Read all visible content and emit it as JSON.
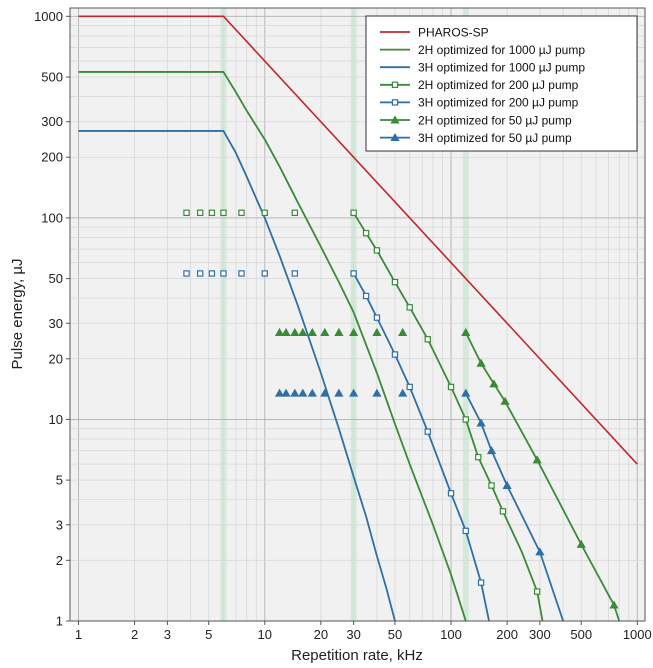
{
  "chart_data": {
    "type": "line",
    "title": "",
    "xlabel": "Repetition rate, kHz",
    "ylabel": "Pulse energy, µJ",
    "x_scale": "log",
    "y_scale": "log",
    "xlim": [
      0.9,
      1100
    ],
    "ylim": [
      1,
      1100
    ],
    "grid": true,
    "legend_position": "top-right",
    "x_ticks": [
      1,
      2,
      3,
      5,
      10,
      20,
      30,
      50,
      100,
      200,
      300,
      500,
      1000
    ],
    "x_tick_labels": [
      "1",
      "2",
      "3",
      "5",
      "10",
      "20",
      "30",
      "50",
      "100",
      "200",
      "300",
      "500",
      "1000"
    ],
    "y_ticks": [
      1,
      2,
      3,
      5,
      10,
      20,
      30,
      50,
      100,
      200,
      300,
      500,
      1000
    ],
    "y_tick_labels": [
      "1",
      "2",
      "3",
      "5",
      "10",
      "20",
      "30",
      "50",
      "100",
      "200",
      "300",
      "500",
      "1000"
    ],
    "highlight_x": [
      6,
      30,
      120
    ],
    "series": [
      {
        "name": "PHAROS-SP",
        "color": "#c0272d",
        "marker": "none",
        "x": [
          1,
          6,
          1000
        ],
        "y": [
          1000,
          1000,
          6
        ]
      },
      {
        "name": "2H optimized for 1000 µJ pump",
        "color": "#3a8a3a",
        "marker": "none",
        "x": [
          1,
          6,
          7,
          8,
          10,
          12,
          15,
          20,
          25,
          30,
          40,
          50,
          60,
          80,
          100,
          120
        ],
        "y": [
          530,
          530,
          420,
          340,
          245,
          180,
          120,
          72,
          48,
          34,
          17,
          9.5,
          6,
          3,
          1.7,
          1
        ]
      },
      {
        "name": "3H optimized for 1000 µJ pump",
        "color": "#2e6fa6",
        "marker": "none",
        "x": [
          1,
          6,
          7,
          8,
          10,
          12,
          15,
          20,
          25,
          30,
          35,
          40,
          45,
          50
        ],
        "y": [
          270,
          270,
          210,
          160,
          100,
          65,
          37,
          17,
          9,
          5.2,
          3.3,
          2.1,
          1.45,
          1
        ]
      },
      {
        "name": "2H optimized for 200 µJ pump",
        "color": "#3a8a3a",
        "marker": "open-square",
        "points_x": [
          3.8,
          4.5,
          5.2,
          6,
          7.5,
          10,
          14.5,
          30,
          35,
          40,
          50,
          60,
          75,
          100,
          120,
          140,
          165,
          190,
          290
        ],
        "points_y": [
          106,
          106,
          106,
          106,
          106,
          106,
          106,
          106,
          84,
          69,
          48,
          36,
          25,
          14.5,
          10,
          6.5,
          4.7,
          3.5,
          1.4
        ],
        "x": [
          30,
          35,
          40,
          50,
          60,
          75,
          100,
          120,
          140,
          165,
          190,
          240,
          290,
          310
        ],
        "y": [
          106,
          84,
          69,
          48,
          36,
          25,
          14.5,
          10,
          6.5,
          4.7,
          3.5,
          2.2,
          1.4,
          1
        ]
      },
      {
        "name": "3H optimized for 200 µJ pump",
        "color": "#2e6fa6",
        "marker": "open-square",
        "points_x": [
          3.8,
          4.5,
          5.2,
          6,
          7.5,
          10,
          14.5,
          30,
          35,
          40,
          50,
          60,
          75,
          100,
          120,
          145
        ],
        "points_y": [
          53,
          53,
          53,
          53,
          53,
          53,
          53,
          53,
          41,
          32,
          21,
          14.5,
          8.7,
          4.3,
          2.8,
          1.55
        ],
        "x": [
          30,
          35,
          40,
          50,
          60,
          75,
          100,
          120,
          145,
          160
        ],
        "y": [
          53,
          41,
          32,
          21,
          14.5,
          8.7,
          4.3,
          2.8,
          1.55,
          1
        ]
      },
      {
        "name": "2H optimized for 50 µJ pump",
        "color": "#3a8a3a",
        "marker": "filled-triangle",
        "points_x": [
          12,
          13,
          14.5,
          16,
          18,
          21,
          25,
          30,
          40,
          55,
          120,
          145,
          170,
          195,
          290,
          500,
          750
        ],
        "points_y": [
          27,
          27,
          27,
          27,
          27,
          27,
          27,
          27,
          27,
          27,
          27,
          19,
          15,
          12.3,
          6.3,
          2.4,
          1.2
        ],
        "x": [
          120,
          145,
          170,
          195,
          290,
          500,
          750,
          800
        ],
        "y": [
          27,
          19,
          15,
          12.3,
          6.3,
          2.4,
          1.2,
          1
        ]
      },
      {
        "name": "3H optimized for 50 µJ pump",
        "color": "#2e6fa6",
        "marker": "filled-triangle",
        "points_x": [
          12,
          13,
          14.5,
          16,
          18,
          21,
          25,
          30,
          40,
          55,
          120,
          145,
          165,
          200,
          300
        ],
        "points_y": [
          13.5,
          13.5,
          13.5,
          13.5,
          13.5,
          13.5,
          13.5,
          13.5,
          13.5,
          13.5,
          13.5,
          9.6,
          7,
          4.7,
          2.2
        ],
        "x": [
          120,
          145,
          165,
          200,
          300,
          400
        ],
        "y": [
          13.5,
          9.6,
          7,
          4.7,
          2.2,
          1
        ]
      }
    ]
  }
}
